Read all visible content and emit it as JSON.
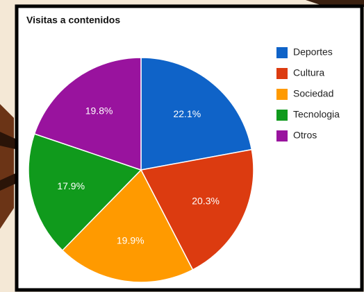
{
  "chart_data": {
    "type": "pie",
    "title": "Visitas a contenidos",
    "categories": [
      "Deportes",
      "Cultura",
      "Sociedad",
      "Tecnologia",
      "Otros"
    ],
    "values": [
      22.1,
      20.3,
      19.9,
      17.9,
      19.8
    ],
    "value_labels": [
      "22.1%",
      "20.3%",
      "19.9%",
      "17.9%",
      "19.8%"
    ],
    "colors": [
      "#0f63c8",
      "#dc3b10",
      "#ff9a00",
      "#109a1c",
      "#99139e"
    ],
    "legend": "right"
  }
}
